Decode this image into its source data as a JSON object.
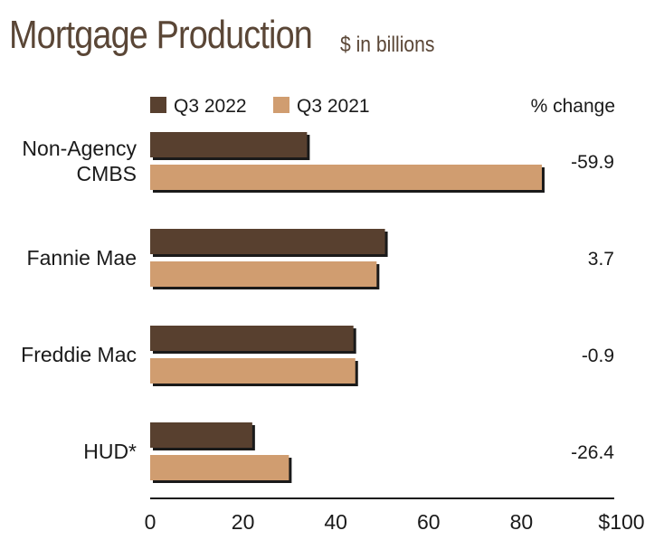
{
  "title": "Mortgage Production",
  "subtitle": "$ in billions",
  "legend": {
    "header": "% change"
  },
  "colors": {
    "q3_2022": "#58402f",
    "q3_2021": "#d09d70",
    "shadow": "#1a1a1a"
  },
  "chart_data": {
    "type": "bar",
    "orientation": "horizontal",
    "title": "Mortgage Production",
    "subtitle": "$ in billions",
    "categories": [
      [
        "Non-Agency",
        "CMBS"
      ],
      [
        "Fannie Mae"
      ],
      [
        "Freddie Mac"
      ],
      [
        "HUD*"
      ]
    ],
    "series": [
      {
        "name": "Q3 2022",
        "values": [
          33.8,
          50.6,
          43.8,
          22.0
        ]
      },
      {
        "name": "Q3 2021",
        "values": [
          84.4,
          48.8,
          44.2,
          29.9
        ]
      }
    ],
    "pct_change": [
      "-59.9",
      "3.7",
      "-0.9",
      "-26.4"
    ],
    "xlim": [
      0,
      100
    ],
    "xticks": [
      "0",
      "20",
      "40",
      "60",
      "80",
      "$100"
    ],
    "grid": false,
    "legend_position": "top"
  }
}
